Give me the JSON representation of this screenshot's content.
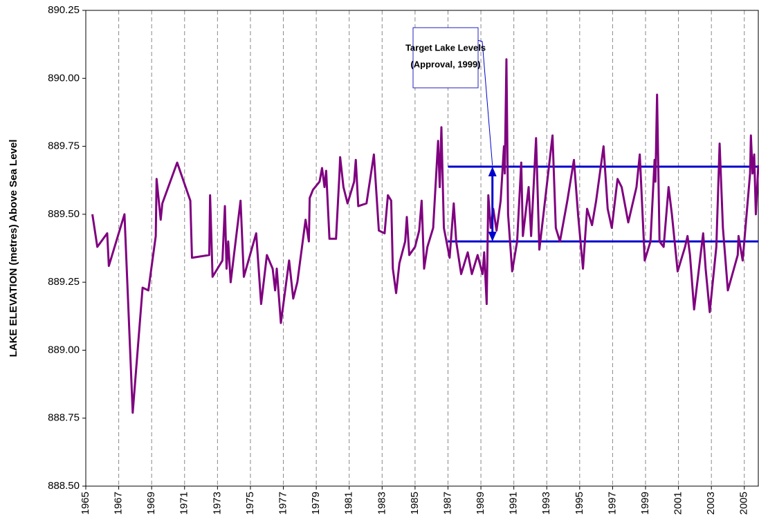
{
  "chart_data": {
    "type": "line",
    "y_label": "LAKE ELEVATION (metres) Above Sea Level",
    "ylim": [
      888.5,
      890.25
    ],
    "yticks": [
      {
        "value": 888.5,
        "label": "888.50"
      },
      888.75,
      {
        "value": 889,
        "label": "889.00"
      },
      889.25,
      {
        "value": 889.5,
        "label": "889.50"
      },
      889.75,
      {
        "value": 890,
        "label": "890.00"
      },
      890.25
    ],
    "xlim": [
      1965,
      2005.85
    ],
    "xticks": [
      1965,
      1967,
      1969,
      1971,
      1973,
      1975,
      1977,
      1979,
      1981,
      1983,
      1985,
      1987,
      1989,
      1991,
      1993,
      1995,
      1997,
      1999,
      2001,
      2003,
      2005
    ],
    "grid": true,
    "x": [
      1965.4,
      1965.7,
      1966.3,
      1966.4,
      1967.35,
      1967.85,
      1968.45,
      1968.8,
      1969.25,
      1969.3,
      1969.55,
      1969.65,
      1970.55,
      1971.35,
      1971.45,
      1972.5,
      1972.55,
      1972.7,
      1973.3,
      1973.45,
      1973.55,
      1973.65,
      1973.8,
      1974.4,
      1974.6,
      1975.35,
      1975.65,
      1976.0,
      1976.35,
      1976.5,
      1976.6,
      1976.85,
      1977.35,
      1977.6,
      1977.85,
      1978.35,
      1978.55,
      1978.6,
      1978.8,
      1979.2,
      1979.35,
      1979.5,
      1979.6,
      1979.8,
      1980.2,
      1980.4,
      1980.45,
      1980.65,
      1980.9,
      1981.3,
      1981.4,
      1981.55,
      1982.05,
      1982.5,
      1982.8,
      1983.15,
      1983.35,
      1983.55,
      1983.65,
      1983.85,
      1984.05,
      1984.4,
      1984.5,
      1984.65,
      1985.0,
      1985.25,
      1985.4,
      1985.55,
      1985.75,
      1986.1,
      1986.4,
      1986.5,
      1986.6,
      1986.75,
      1987.1,
      1987.35,
      1987.5,
      1987.8,
      1988.2,
      1988.45,
      1988.8,
      1989.1,
      1989.2,
      1989.35,
      1989.45,
      1989.6,
      1989.75,
      1989.95,
      1990.2,
      1990.4,
      1990.45,
      1990.55,
      1990.65,
      1990.9,
      1991.2,
      1991.45,
      1991.55,
      1991.9,
      1992.05,
      1992.35,
      1992.55,
      1992.8,
      1993.35,
      1993.55,
      1993.8,
      1994.25,
      1994.65,
      1994.9,
      1995.2,
      1995.45,
      1995.75,
      1996.0,
      1996.45,
      1996.7,
      1996.95,
      1997.3,
      1997.55,
      1997.95,
      1998.45,
      1998.65,
      1998.95,
      1999.3,
      1999.55,
      1999.6,
      1999.7,
      1999.85,
      2000.1,
      2000.4,
      2000.6,
      2000.95,
      2001.4,
      2001.55,
      2001.7,
      2001.95,
      2002.5,
      2002.65,
      2002.9,
      2003.3,
      2003.5,
      2003.7,
      2004.0,
      2004.6,
      2004.65,
      2004.9,
      2005.35,
      2005.4,
      2005.5,
      2005.6,
      2005.7,
      2005.85
    ],
    "series": [
      {
        "color": "#7f007f",
        "values": [
          889.5,
          889.38,
          889.43,
          889.31,
          889.5,
          888.77,
          889.23,
          889.22,
          889.42,
          889.63,
          889.48,
          889.54,
          889.69,
          889.55,
          889.34,
          889.35,
          889.57,
          889.27,
          889.33,
          889.53,
          889.3,
          889.4,
          889.25,
          889.55,
          889.27,
          889.43,
          889.17,
          889.35,
          889.3,
          889.22,
          889.3,
          889.1,
          889.33,
          889.19,
          889.25,
          889.48,
          889.4,
          889.56,
          889.59,
          889.62,
          889.67,
          889.6,
          889.66,
          889.41,
          889.41,
          889.64,
          889.71,
          889.6,
          889.54,
          889.62,
          889.7,
          889.53,
          889.54,
          889.72,
          889.44,
          889.43,
          889.57,
          889.55,
          889.3,
          889.21,
          889.32,
          889.4,
          889.49,
          889.35,
          889.38,
          889.44,
          889.55,
          889.3,
          889.38,
          889.45,
          889.77,
          889.6,
          889.82,
          889.45,
          889.34,
          889.54,
          889.4,
          889.28,
          889.36,
          889.28,
          889.35,
          889.28,
          889.36,
          889.17,
          889.57,
          889.45,
          889.52,
          889.44,
          889.55,
          889.75,
          889.65,
          890.07,
          889.5,
          889.29,
          889.4,
          889.69,
          889.42,
          889.6,
          889.42,
          889.78,
          889.37,
          889.5,
          889.79,
          889.45,
          889.4,
          889.55,
          889.7,
          889.5,
          889.3,
          889.52,
          889.46,
          889.55,
          889.75,
          889.52,
          889.45,
          889.63,
          889.6,
          889.47,
          889.6,
          889.72,
          889.33,
          889.4,
          889.7,
          889.62,
          889.94,
          889.4,
          889.38,
          889.6,
          889.5,
          889.29,
          889.38,
          889.42,
          889.35,
          889.15,
          889.43,
          889.3,
          889.14,
          889.38,
          889.76,
          889.45,
          889.22,
          889.35,
          889.42,
          889.33,
          889.65,
          889.79,
          889.65,
          889.72,
          889.5,
          889.68
        ]
      }
    ],
    "reference_lines": [
      {
        "value": 889.675,
        "x_start": 1987,
        "color": "#0000cc"
      },
      {
        "value": 889.4,
        "x_start": 1987,
        "color": "#0000cc"
      }
    ],
    "annotation": {
      "lines": [
        "Target Lake Levels",
        "(Approval, 1999)"
      ],
      "arrow_x": 1989.7
    }
  }
}
